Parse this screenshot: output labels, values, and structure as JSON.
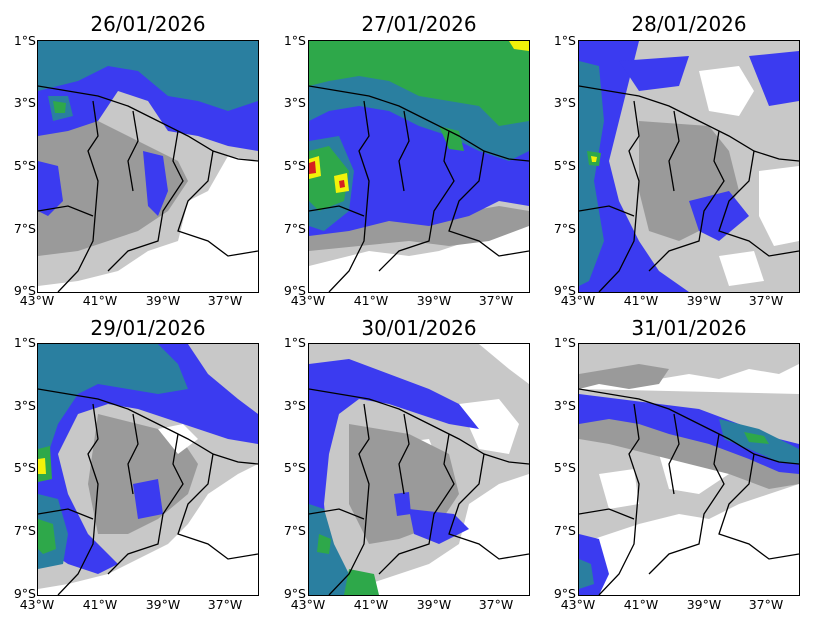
{
  "panels": [
    {
      "title": "26/01/2026"
    },
    {
      "title": "27/01/2026"
    },
    {
      "title": "28/01/2026"
    },
    {
      "title": "29/01/2026"
    },
    {
      "title": "30/01/2026"
    },
    {
      "title": "31/01/2026"
    }
  ],
  "axes": {
    "y_labels": [
      "1°S",
      "3°S",
      "5°S",
      "7°S",
      "9°S"
    ],
    "x_labels": [
      "43°W",
      "41°W",
      "39°W",
      "37°W"
    ]
  },
  "colors": {
    "light_gray": "#c8c8c8",
    "dark_gray": "#9a9a9a",
    "blue": "#3b3bf0",
    "teal": "#2a7fa0",
    "green": "#2ea84a",
    "yellow": "#f2f20a",
    "red": "#d62020",
    "border": "#000000"
  }
}
